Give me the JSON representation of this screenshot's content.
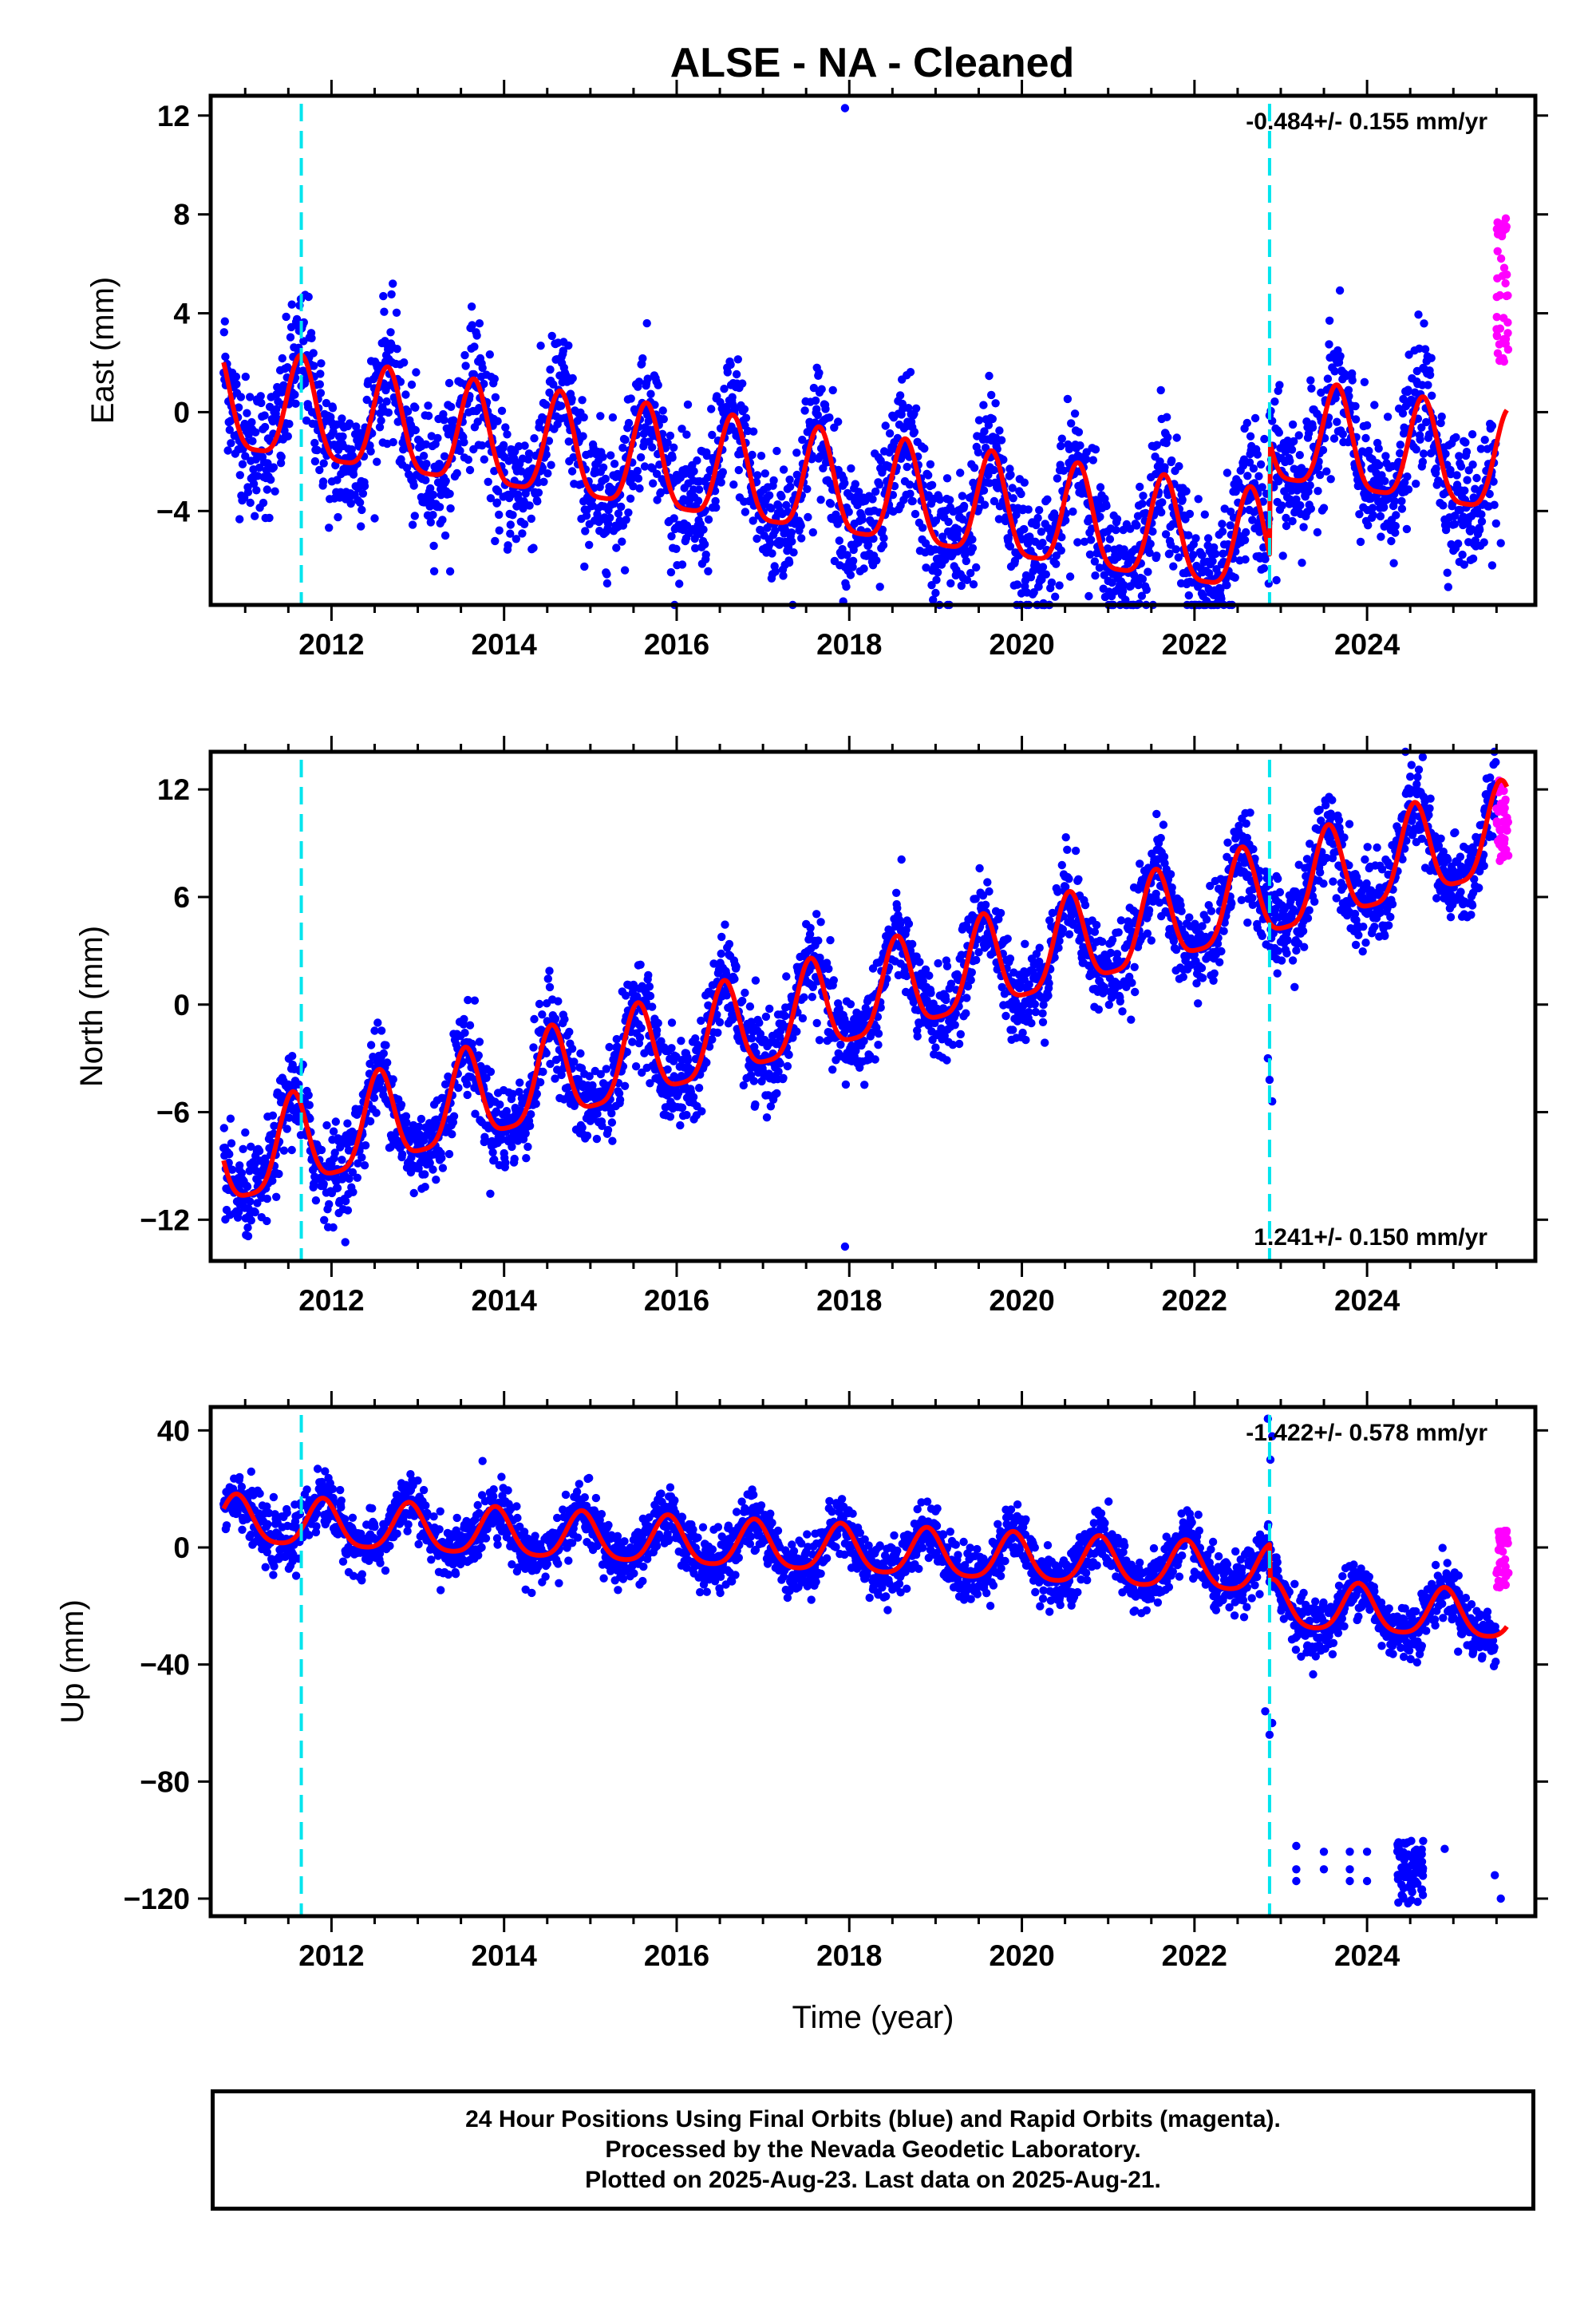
{
  "colors": {
    "final_orbits": "#0000ff",
    "rapid_orbits": "#ff00ff",
    "model": "#ff0000",
    "equipment_change": "#00e5ee",
    "frame": "#000000"
  },
  "chart_data": [
    {
      "type": "scatter",
      "title": "ALSE  - NA - Cleaned",
      "ylabel": "East (mm)",
      "xlabel": "",
      "rate_label": "-0.484+/- 0.155 mm/yr",
      "rate_position": "top-right",
      "xlim": [
        2010.6,
        2025.95
      ],
      "ylim": [
        -7.8,
        12.8
      ],
      "xticks": [
        2012,
        2014,
        2016,
        2018,
        2020,
        2022,
        2024
      ],
      "yticks": [
        -4,
        0,
        4,
        8,
        12
      ],
      "ytick_labels": [
        "−4",
        "0",
        "4",
        "8",
        "12"
      ],
      "grid": false,
      "equipment_changes": [
        2011.65,
        2022.87
      ],
      "model": {
        "series_offset": 0.2,
        "trend": -0.484,
        "annual_amp": 2.05,
        "annual_peak": 0.65,
        "semiannual_amp": 0.5,
        "step_at": 2022.87,
        "step_mm": 4.6
      },
      "scatter_sd": 1.35,
      "rapid": {
        "x_start": 2025.5,
        "x_end": 2025.64,
        "y_min": 2.0,
        "y_max": 8.0
      },
      "outliers": [
        [
          2017.95,
          12.3
        ],
        [
          2022.95,
          -6.8
        ],
        [
          2025.45,
          -6.2
        ],
        [
          2025.55,
          -5.3
        ]
      ]
    },
    {
      "type": "scatter",
      "title": "",
      "ylabel": "North (mm)",
      "xlabel": "",
      "rate_label": "1.241+/- 0.150 mm/yr",
      "rate_position": "bottom-right",
      "xlim": [
        2010.6,
        2025.95
      ],
      "ylim": [
        -14.3,
        14.1
      ],
      "xticks": [
        2012,
        2014,
        2016,
        2018,
        2020,
        2022,
        2024
      ],
      "yticks": [
        -12,
        -6,
        0,
        6,
        12
      ],
      "ytick_labels": [
        "−12",
        "−6",
        "0",
        "6",
        "12"
      ],
      "grid": false,
      "equipment_changes": [
        2011.65,
        2022.87
      ],
      "model": {
        "series_offset": -9.0,
        "trend": 1.241,
        "annual_amp": 2.55,
        "annual_peak": 0.55,
        "semiannual_amp": 0.6,
        "step_at": 2022.87,
        "step_mm": 0
      },
      "scatter_sd": 1.25,
      "rapid": {
        "x_start": 2025.5,
        "x_end": 2025.64,
        "y_min": 8.0,
        "y_max": 12.5
      },
      "outliers": [
        [
          2017.95,
          -13.5
        ],
        [
          2022.85,
          -3.0
        ],
        [
          2022.87,
          -4.2
        ],
        [
          2022.9,
          -5.4
        ]
      ]
    },
    {
      "type": "scatter",
      "title": "",
      "ylabel": "Up (mm)",
      "xlabel": "Time (year)",
      "rate_label": "-1.422+/- 0.578 mm/yr",
      "rate_position": "top-right",
      "xlim": [
        2010.6,
        2025.95
      ],
      "ylim": [
        -126,
        48
      ],
      "xticks": [
        2012,
        2014,
        2016,
        2018,
        2020,
        2022,
        2024
      ],
      "yticks": [
        -120,
        -80,
        -40,
        0,
        40
      ],
      "ytick_labels": [
        "−120",
        "−80",
        "−40",
        "0",
        "40"
      ],
      "grid": false,
      "equipment_changes": [
        2011.65,
        2022.87
      ],
      "model": {
        "series_offset": 9.0,
        "trend": -1.422,
        "annual_amp": 8.0,
        "annual_peak": 0.9,
        "semiannual_amp": 1.5,
        "step_at": 2022.87,
        "step_mm": -12
      },
      "scatter_sd": 4.8,
      "rapid": {
        "x_start": 2025.5,
        "x_end": 2025.64,
        "y_min": -15,
        "y_max": 6
      },
      "outliers": [
        [
          2022.85,
          44
        ],
        [
          2022.88,
          30
        ],
        [
          2022.9,
          38
        ],
        [
          2022.82,
          -56
        ],
        [
          2022.9,
          -60
        ],
        [
          2022.87,
          -64
        ],
        [
          2023.18,
          -102
        ],
        [
          2023.18,
          -110
        ],
        [
          2023.18,
          -114
        ],
        [
          2023.5,
          -104
        ],
        [
          2023.5,
          -110
        ],
        [
          2023.8,
          -104
        ],
        [
          2023.8,
          -110
        ],
        [
          2023.8,
          -114
        ],
        [
          2024.0,
          -104
        ],
        [
          2024.0,
          -114
        ],
        [
          2024.9,
          -103
        ],
        [
          2025.48,
          -112
        ],
        [
          2025.55,
          -120
        ]
      ],
      "offset_cluster": {
        "x_start": 2024.35,
        "x_end": 2024.65,
        "y_min": -122,
        "y_max": -100
      }
    }
  ],
  "footer": {
    "line1": "24 Hour Positions Using Final Orbits (blue) and Rapid Orbits (magenta).",
    "line2": "Processed by the Nevada Geodetic Laboratory.",
    "line3": "Plotted on 2025-Aug-23. Last data on 2025-Aug-21."
  }
}
